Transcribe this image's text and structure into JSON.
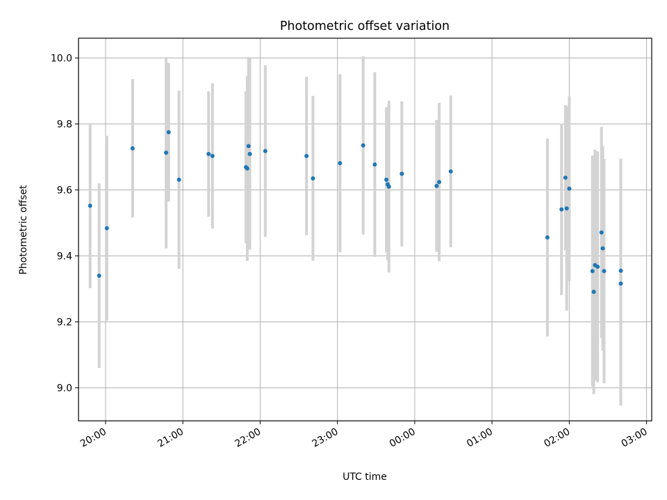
{
  "chart_data": {
    "type": "scatter",
    "title": "Photometric offset variation",
    "xlabel": "UTC time",
    "ylabel": "Photometric offset",
    "xlim": [
      "19:39",
      "03:04"
    ],
    "ylim": [
      8.9,
      10.06
    ],
    "grid": true,
    "x_ticks": [
      "20:00",
      "21:00",
      "22:00",
      "23:00",
      "00:00",
      "01:00",
      "02:00",
      "03:00"
    ],
    "y_ticks": [
      "9.0",
      "9.2",
      "9.4",
      "9.6",
      "9.8",
      "10.0"
    ],
    "series": [
      {
        "color": "#1f77b4",
        "error_color": "#d3d3d3",
        "points": [
          {
            "x": "19:48",
            "y": 9.552,
            "yerr": 0.25
          },
          {
            "x": "19:55",
            "y": 9.34,
            "yerr": 0.28
          },
          {
            "x": "20:01",
            "y": 9.484,
            "yerr": 0.28
          },
          {
            "x": "20:21",
            "y": 9.726,
            "yerr": 0.21
          },
          {
            "x": "20:47",
            "y": 9.713,
            "yerr": 0.29
          },
          {
            "x": "20:49",
            "y": 9.775,
            "yerr": 0.21
          },
          {
            "x": "20:57",
            "y": 9.631,
            "yerr": 0.27
          },
          {
            "x": "21:20",
            "y": 9.709,
            "yerr": 0.19
          },
          {
            "x": "21:23",
            "y": 9.703,
            "yerr": 0.22
          },
          {
            "x": "21:49",
            "y": 9.669,
            "yerr": 0.23
          },
          {
            "x": "21:50",
            "y": 9.665,
            "yerr": 0.28
          },
          {
            "x": "21:51",
            "y": 9.733,
            "yerr": 0.27
          },
          {
            "x": "21:52",
            "y": 9.709,
            "yerr": 0.29
          },
          {
            "x": "22:04",
            "y": 9.718,
            "yerr": 0.26
          },
          {
            "x": "22:36",
            "y": 9.703,
            "yerr": 0.24
          },
          {
            "x": "22:41",
            "y": 9.635,
            "yerr": 0.25
          },
          {
            "x": "23:02",
            "y": 9.681,
            "yerr": 0.27
          },
          {
            "x": "23:20",
            "y": 9.735,
            "yerr": 0.27
          },
          {
            "x": "23:29",
            "y": 9.677,
            "yerr": 0.28
          },
          {
            "x": "23:38",
            "y": 9.631,
            "yerr": 0.22
          },
          {
            "x": "23:39",
            "y": 9.617,
            "yerr": 0.23
          },
          {
            "x": "23:40",
            "y": 9.61,
            "yerr": 0.26
          },
          {
            "x": "23:50",
            "y": 9.649,
            "yerr": 0.22
          },
          {
            "x": "00:17",
            "y": 9.612,
            "yerr": 0.2
          },
          {
            "x": "00:19",
            "y": 9.624,
            "yerr": 0.24
          },
          {
            "x": "00:28",
            "y": 9.656,
            "yerr": 0.23
          },
          {
            "x": "01:43",
            "y": 9.456,
            "yerr": 0.3
          },
          {
            "x": "01:54",
            "y": 9.541,
            "yerr": 0.26
          },
          {
            "x": "01:57",
            "y": 9.637,
            "yerr": 0.22
          },
          {
            "x": "01:58",
            "y": 9.544,
            "yerr": 0.31
          },
          {
            "x": "02:00",
            "y": 9.604,
            "yerr": 0.28
          },
          {
            "x": "02:18",
            "y": 9.354,
            "yerr": 0.35
          },
          {
            "x": "02:19",
            "y": 9.291,
            "yerr": 0.31
          },
          {
            "x": "02:20",
            "y": 9.372,
            "yerr": 0.35
          },
          {
            "x": "02:22",
            "y": 9.367,
            "yerr": 0.35
          },
          {
            "x": "02:25",
            "y": 9.471,
            "yerr": 0.32
          },
          {
            "x": "02:26",
            "y": 9.423,
            "yerr": 0.31
          },
          {
            "x": "02:27",
            "y": 9.354,
            "yerr": 0.34
          },
          {
            "x": "02:40",
            "y": 9.355,
            "yerr": 0.34
          },
          {
            "x": "02:40",
            "y": 9.316,
            "yerr": 0.37
          }
        ]
      }
    ]
  }
}
